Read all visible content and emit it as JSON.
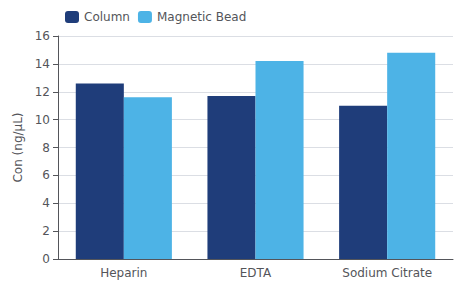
{
  "chart_data": {
    "type": "bar",
    "categories": [
      "Heparin",
      "EDTA",
      "Sodium Citrate"
    ],
    "series": [
      {
        "name": "Column",
        "color": "#1f3d7a",
        "values": [
          12.6,
          11.7,
          11.0
        ]
      },
      {
        "name": "Magnetic Bead",
        "color": "#4db3e6",
        "values": [
          11.6,
          14.2,
          14.8
        ]
      }
    ],
    "ylabel": "Con (ng/μL)",
    "ylim": [
      0,
      16
    ],
    "yticks": [
      0,
      2,
      4,
      6,
      8,
      10,
      12,
      14,
      16
    ],
    "grid": true,
    "legend": "upper left"
  }
}
